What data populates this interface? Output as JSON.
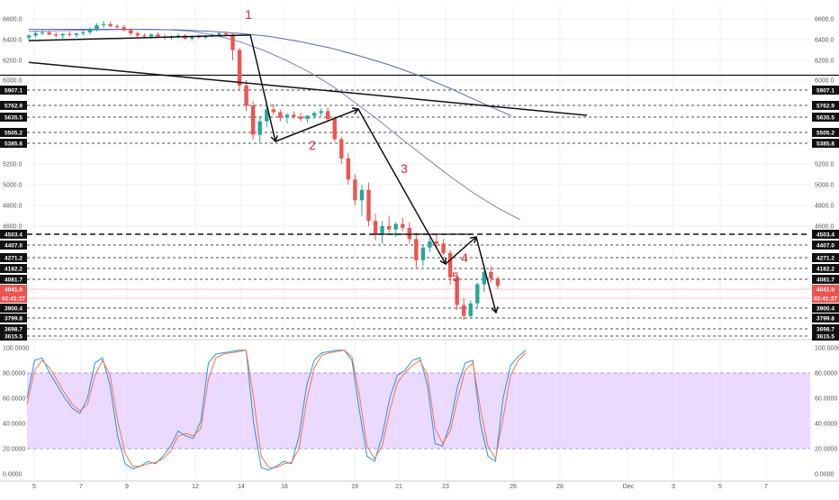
{
  "chart_data": [
    {
      "type": "candlestick",
      "title": "",
      "price_axis": {
        "ticks": [
          6600.0,
          6400.0,
          6200.0,
          6000.0,
          5200.0,
          5000.0,
          4800.0,
          4600.0
        ],
        "ylim": [
          3615,
          6700
        ]
      },
      "x_axis": {
        "ticks": [
          "5",
          "7",
          "9",
          "12",
          "14",
          "16",
          "19",
          "21",
          "23",
          "26",
          "28",
          "Dec",
          "3",
          "5",
          "7"
        ]
      },
      "levels": [
        {
          "value": 5907.1,
          "label": "5907.1",
          "style": "dashed"
        },
        {
          "value": 5762.9,
          "label": "5762.9",
          "style": "dashed"
        },
        {
          "value": 5635.5,
          "label": "5635.5",
          "style": "dashed"
        },
        {
          "value": 5505.2,
          "label": "5505.2",
          "style": "dashed"
        },
        {
          "value": 5385.8,
          "label": "5385.8",
          "style": "dashed"
        },
        {
          "value": 4503.4,
          "label": "4503.4",
          "style": "bold-dashed"
        },
        {
          "value": 4407.0,
          "label": "4407.0",
          "style": "dashed"
        },
        {
          "value": 4271.2,
          "label": "4271.2",
          "style": "dashed"
        },
        {
          "value": 4182.2,
          "label": "4182.2",
          "style": "dashed"
        },
        {
          "value": 4081.7,
          "label": "4081.7",
          "style": "dashed"
        },
        {
          "value": 3900.4,
          "label": "3900.4",
          "style": "dashed"
        },
        {
          "value": 3799.8,
          "label": "3799.8",
          "style": "dashed"
        },
        {
          "value": 3698.7,
          "label": "3698.7",
          "style": "dashed"
        },
        {
          "value": 3615.5,
          "label": "3615.5",
          "style": "dashed"
        }
      ],
      "horizontal_line": 6050,
      "current_price": {
        "label": "4041.0",
        "color": "#ef5350"
      },
      "countdown": {
        "label": "02:41:27",
        "color": "#ef5350"
      },
      "candles": [
        [
          6420,
          6450,
          6395,
          6440
        ],
        [
          6440,
          6480,
          6420,
          6460
        ],
        [
          6460,
          6500,
          6440,
          6470
        ],
        [
          6470,
          6490,
          6440,
          6450
        ],
        [
          6450,
          6470,
          6420,
          6440
        ],
        [
          6440,
          6460,
          6410,
          6455
        ],
        [
          6455,
          6480,
          6430,
          6445
        ],
        [
          6445,
          6465,
          6420,
          6460
        ],
        [
          6460,
          6490,
          6440,
          6470
        ],
        [
          6470,
          6520,
          6450,
          6500
        ],
        [
          6500,
          6560,
          6480,
          6540
        ],
        [
          6540,
          6580,
          6510,
          6550
        ],
        [
          6550,
          6570,
          6520,
          6530
        ],
        [
          6530,
          6550,
          6500,
          6520
        ],
        [
          6520,
          6540,
          6480,
          6490
        ],
        [
          6490,
          6510,
          6440,
          6460
        ],
        [
          6460,
          6480,
          6420,
          6440
        ],
        [
          6440,
          6460,
          6410,
          6430
        ],
        [
          6430,
          6460,
          6410,
          6450
        ],
        [
          6450,
          6470,
          6420,
          6430
        ],
        [
          6430,
          6450,
          6400,
          6420
        ],
        [
          6420,
          6440,
          6400,
          6435
        ],
        [
          6435,
          6460,
          6410,
          6440
        ],
        [
          6440,
          6455,
          6400,
          6410
        ],
        [
          6410,
          6440,
          6390,
          6430
        ],
        [
          6430,
          6450,
          6410,
          6420
        ],
        [
          6420,
          6445,
          6405,
          6435
        ],
        [
          6435,
          6460,
          6420,
          6445
        ],
        [
          6445,
          6470,
          6430,
          6460
        ],
        [
          6460,
          6480,
          6440,
          6450
        ],
        [
          6450,
          6470,
          6200,
          6300
        ],
        [
          6300,
          6320,
          5900,
          5950
        ],
        [
          5950,
          6000,
          5700,
          5760
        ],
        [
          5760,
          5800,
          5420,
          5480
        ],
        [
          5480,
          5650,
          5400,
          5600
        ],
        [
          5600,
          5760,
          5550,
          5720
        ],
        [
          5720,
          5780,
          5660,
          5690
        ],
        [
          5690,
          5720,
          5600,
          5630
        ],
        [
          5630,
          5680,
          5580,
          5660
        ],
        [
          5660,
          5700,
          5620,
          5640
        ],
        [
          5640,
          5680,
          5600,
          5620
        ],
        [
          5620,
          5660,
          5590,
          5650
        ],
        [
          5650,
          5700,
          5620,
          5680
        ],
        [
          5680,
          5730,
          5650,
          5700
        ],
        [
          5700,
          5740,
          5600,
          5620
        ],
        [
          5620,
          5640,
          5400,
          5430
        ],
        [
          5430,
          5460,
          5200,
          5250
        ],
        [
          5250,
          5300,
          5000,
          5050
        ],
        [
          5050,
          5100,
          4800,
          4850
        ],
        [
          4850,
          5000,
          4700,
          4950
        ],
        [
          4950,
          5020,
          4600,
          4650
        ],
        [
          4650,
          4720,
          4450,
          4500
        ],
        [
          4500,
          4650,
          4420,
          4600
        ],
        [
          4600,
          4700,
          4520,
          4560
        ],
        [
          4560,
          4640,
          4480,
          4620
        ],
        [
          4620,
          4680,
          4540,
          4580
        ],
        [
          4580,
          4640,
          4420,
          4460
        ],
        [
          4460,
          4520,
          4180,
          4250
        ],
        [
          4250,
          4400,
          4200,
          4380
        ],
        [
          4380,
          4470,
          4330,
          4440
        ],
        [
          4440,
          4500,
          4380,
          4420
        ],
        [
          4420,
          4460,
          4300,
          4320
        ],
        [
          4320,
          4350,
          4050,
          4100
        ],
        [
          4100,
          4130,
          3880,
          3920
        ],
        [
          3920,
          3960,
          3780,
          3820
        ],
        [
          3820,
          3950,
          3800,
          3930
        ],
        [
          3930,
          4060,
          3900,
          4050
        ],
        [
          4050,
          4200,
          4000,
          4150
        ],
        [
          4150,
          4200,
          4060,
          4090
        ],
        [
          4090,
          4110,
          4020,
          4041
        ]
      ],
      "moving_averages": [
        {
          "name": "",
          "color": "#7a86c2",
          "values": [
            6480,
            6485,
            6490,
            6495,
            6498,
            6500,
            6495,
            6480,
            6440,
            6380,
            6300,
            6200,
            6080,
            5940,
            5780,
            5600,
            5420,
            5250,
            5080,
            4920,
            4780,
            4660
          ]
        },
        {
          "name": "",
          "color": "#5b6ab0",
          "values": [
            6500,
            6500,
            6500,
            6500,
            6498,
            6495,
            6480,
            6460,
            6430,
            6380,
            6320,
            6240,
            6150,
            6040,
            5920,
            5790,
            5650
          ]
        }
      ],
      "wave_labels": [
        "1",
        "2",
        "3",
        "4",
        "5"
      ],
      "trendlines": 2
    },
    {
      "type": "line",
      "title": "",
      "ylim": [
        0,
        100
      ],
      "ticks": [
        "100.0000",
        "80.0000",
        "60.0000",
        "40.0000",
        "20.0000",
        "0.0000"
      ],
      "band": {
        "from": 20,
        "to": 80,
        "color": "#e6ccff"
      },
      "series": [
        {
          "name": "",
          "color": "#2196f3",
          "values": [
            60,
            90,
            92,
            80,
            70,
            60,
            52,
            48,
            60,
            88,
            92,
            70,
            30,
            8,
            4,
            6,
            10,
            8,
            14,
            22,
            34,
            30,
            28,
            42,
            88,
            95,
            96,
            97,
            98,
            98,
            40,
            5,
            3,
            6,
            10,
            8,
            30,
            70,
            90,
            96,
            97,
            98,
            98,
            90,
            50,
            14,
            10,
            30,
            60,
            78,
            82,
            90,
            92,
            70,
            24,
            22,
            40,
            70,
            88,
            90,
            40,
            14,
            10,
            60,
            86,
            93,
            98
          ]
        },
        {
          "name": "",
          "color": "#ff7043",
          "values": [
            55,
            82,
            90,
            84,
            74,
            64,
            55,
            50,
            55,
            78,
            90,
            78,
            42,
            16,
            6,
            6,
            8,
            9,
            12,
            18,
            30,
            32,
            30,
            36,
            75,
            92,
            95,
            96,
            97,
            98,
            60,
            14,
            5,
            5,
            8,
            9,
            20,
            58,
            84,
            94,
            96,
            97,
            98,
            93,
            62,
            22,
            12,
            22,
            50,
            72,
            80,
            86,
            90,
            78,
            36,
            24,
            34,
            60,
            82,
            88,
            52,
            22,
            12,
            44,
            78,
            90,
            96
          ]
        }
      ]
    }
  ]
}
